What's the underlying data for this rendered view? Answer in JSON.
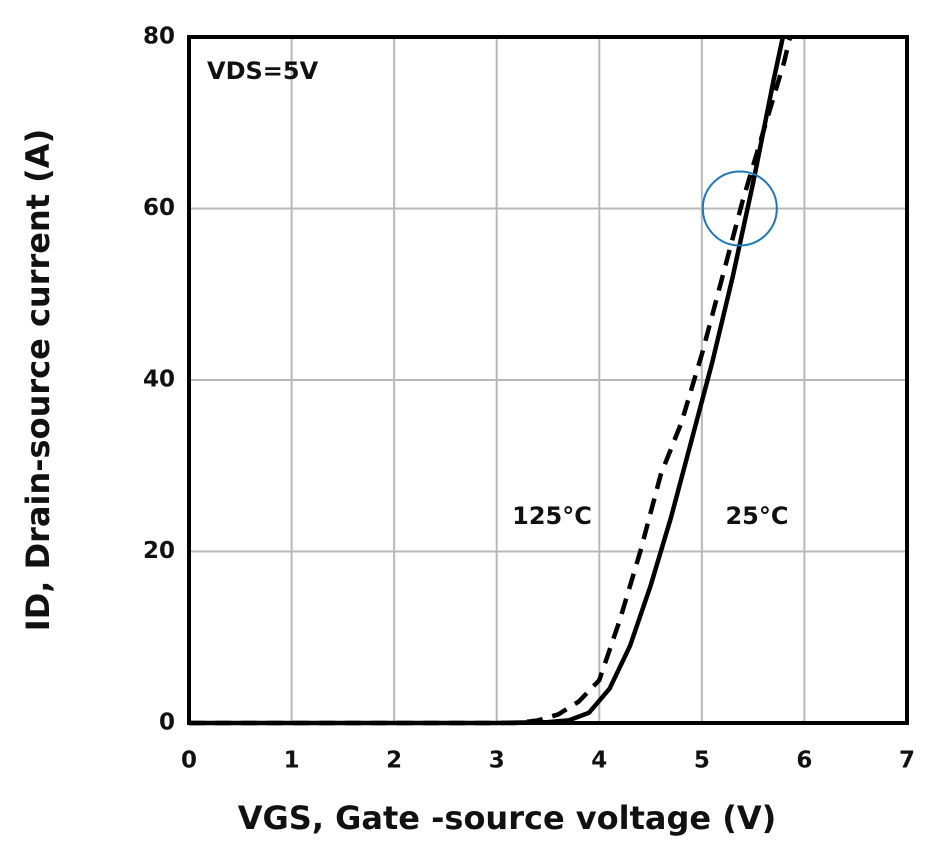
{
  "chart_data": {
    "type": "line",
    "x_label": "VGS, Gate -source voltage (V)",
    "y_label": "ID, Drain-source current (A)",
    "annotation": "VDS=5V",
    "xlim": [
      0,
      7
    ],
    "xticks": [
      0,
      1,
      2,
      3,
      4,
      5,
      6,
      7
    ],
    "ylim": [
      0,
      80
    ],
    "yticks": [
      0,
      20,
      40,
      60,
      80
    ],
    "grid": true,
    "series": [
      {
        "name": "25°C",
        "color": "#000000",
        "dash": false,
        "x": [
          0,
          3,
          3.5,
          3.7,
          3.9,
          4.1,
          4.3,
          4.5,
          4.6,
          4.7,
          4.9,
          5.1,
          5.3,
          5.5,
          5.6,
          5.7,
          5.79
        ],
        "values": [
          0,
          0,
          0.1,
          0.3,
          1.2,
          4,
          9,
          16,
          20,
          24,
          33,
          42,
          52,
          63,
          69,
          75,
          80
        ]
      },
      {
        "name": "125°C",
        "color": "#000000",
        "dash": true,
        "x": [
          0,
          3.2,
          3.4,
          3.6,
          3.8,
          4.0,
          4.2,
          4.4,
          4.6,
          4.8,
          5.0,
          5.2,
          5.4,
          5.6,
          5.8,
          5.86
        ],
        "values": [
          0,
          0,
          0.3,
          1,
          2.5,
          5,
          12,
          20,
          29,
          35,
          43,
          52,
          61,
          69,
          77,
          80
        ]
      }
    ],
    "highlight": {
      "x": 5.37,
      "y": 60,
      "color": "#1f77b4"
    }
  }
}
